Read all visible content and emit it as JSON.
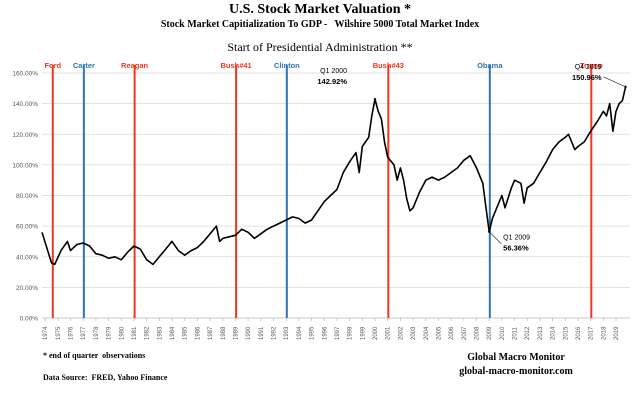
{
  "chart_data": {
    "type": "line",
    "title": "U.S. Stock Market Valuation *",
    "subtitle": "Stock Market Capitialization To GDP -   Wilshire 5000 Total Market Index",
    "legend_title": "Start of Presidential Administration **",
    "footnote": "* end of quarter  observations",
    "source": "Data Source:  FRED, Yahoo Finance",
    "brand": "Global Macro Monitor",
    "website": "global-macro-monitor.com",
    "xlim": [
      1973.75,
      2020.1
    ],
    "xticks": [
      1974,
      1975,
      1976,
      1977,
      1978,
      1979,
      1980,
      1981,
      1982,
      1983,
      1984,
      1985,
      1986,
      1987,
      1988,
      1989,
      1990,
      1991,
      1992,
      1993,
      1994,
      1995,
      1996,
      1997,
      1998,
      1999,
      2000,
      2001,
      2002,
      2003,
      2004,
      2005,
      2006,
      2007,
      2008,
      2009,
      2010,
      2011,
      2012,
      2013,
      2014,
      2015,
      2016,
      2017,
      2018,
      2019
    ],
    "ylim": [
      0,
      160
    ],
    "yticks": [
      {
        "value": 0,
        "label": "0.00%"
      },
      {
        "value": 20,
        "label": "20.00%"
      },
      {
        "value": 40,
        "label": "40.00%"
      },
      {
        "value": 60,
        "label": "60.00%"
      },
      {
        "value": 80,
        "label": "80.00%"
      },
      {
        "value": 100,
        "label": "100.00%"
      },
      {
        "value": 120,
        "label": "120.00%"
      },
      {
        "value": 140,
        "label": "140.00%"
      },
      {
        "value": 160,
        "label": "160.00%"
      }
    ],
    "grid": true,
    "x": [
      1973.75,
      1974.5,
      1974.75,
      1975.25,
      1975.75,
      1976,
      1976.5,
      1977,
      1977.5,
      1978,
      1978.5,
      1979,
      1979.5,
      1980,
      1980.5,
      1981,
      1981.5,
      1982,
      1982.5,
      1983,
      1983.5,
      1984,
      1984.5,
      1985,
      1985.5,
      1986,
      1986.5,
      1987,
      1987.5,
      1987.75,
      1988,
      1988.5,
      1989,
      1989.5,
      1990,
      1990.5,
      1991,
      1991.5,
      1992,
      1992.5,
      1993,
      1993.5,
      1994,
      1994.5,
      1995,
      1995.5,
      1996,
      1996.5,
      1997,
      1997.5,
      1998,
      1998.5,
      1998.75,
      1999,
      1999.5,
      1999.75,
      2000,
      2000.25,
      2000.5,
      2000.75,
      2001,
      2001.5,
      2001.75,
      2002,
      2002.25,
      2002.5,
      2002.75,
      2003,
      2003.5,
      2004,
      2004.5,
      2005,
      2005.5,
      2006,
      2006.5,
      2007,
      2007.5,
      2008,
      2008.5,
      2008.75,
      2009,
      2009.25,
      2009.75,
      2010,
      2010.25,
      2010.75,
      2011,
      2011.5,
      2011.75,
      2012,
      2012.5,
      2013,
      2013.5,
      2014,
      2014.5,
      2015,
      2015.25,
      2015.75,
      2016,
      2016.5,
      2017,
      2017.5,
      2018,
      2018.25,
      2018.5,
      2018.75,
      2019,
      2019.25,
      2019.5,
      2019.75
    ],
    "series": [
      {
        "color": "#000000",
        "values": [
          56,
          36,
          35,
          44,
          50,
          44,
          48,
          49,
          47,
          42,
          41,
          39,
          40,
          38,
          43,
          47,
          45,
          38,
          35,
          40,
          45,
          50,
          44,
          41,
          44,
          46,
          50,
          55,
          60,
          50,
          52,
          53,
          54,
          58,
          56,
          52,
          55,
          58,
          60,
          62,
          64,
          66,
          65,
          62,
          64,
          70,
          76,
          80,
          84,
          95,
          102,
          108,
          95,
          112,
          118,
          132,
          142.92,
          135,
          130,
          115,
          105,
          100,
          90,
          98,
          90,
          78,
          70,
          72,
          82,
          90,
          92,
          90,
          92,
          95,
          98,
          103,
          106,
          98,
          88,
          72,
          56.36,
          65,
          75,
          80,
          72,
          85,
          90,
          88,
          75,
          85,
          88,
          95,
          102,
          110,
          115,
          118,
          120,
          110,
          112,
          115,
          122,
          128,
          135,
          132,
          140,
          122,
          135,
          140,
          142,
          150.96
        ]
      }
    ],
    "presidents": [
      {
        "name": "Ford",
        "x": 1974.6,
        "color": "#f2351f"
      },
      {
        "name": "Carter",
        "x": 1977.05,
        "color": "#2e75b6"
      },
      {
        "name": "Reagan",
        "x": 1981.05,
        "color": "#f2351f"
      },
      {
        "name": "Bush#41",
        "x": 1989.05,
        "color": "#f2351f"
      },
      {
        "name": "Clinton",
        "x": 1993.05,
        "color": "#2e75b6"
      },
      {
        "name": "Bush#43",
        "x": 2001.05,
        "color": "#f2351f"
      },
      {
        "name": "Obama",
        "x": 2009.05,
        "color": "#2e75b6"
      },
      {
        "name": "Trump",
        "x": 2017.05,
        "color": "#f2351f"
      }
    ],
    "annotations": [
      {
        "label": "Q1 2000",
        "x": 2000,
        "y": 142.92,
        "value_label": "142.92%"
      },
      {
        "label": "Q1 2009",
        "x": 2009,
        "y": 56.36,
        "value_label": "56.36%"
      },
      {
        "label": "Q4 2019",
        "x": 2019.75,
        "y": 150.96,
        "value_label": "150.96%"
      }
    ]
  }
}
